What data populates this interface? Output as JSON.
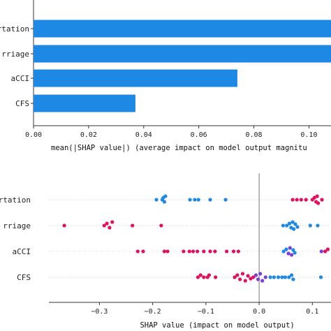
{
  "chart_data": [
    {
      "type": "bar",
      "orientation": "horizontal",
      "categories": [
        "Transportation",
        "Miscarriage",
        "aCCI",
        "CFS"
      ],
      "category_labels": [
        "rtation",
        "rriage",
        "aCCI",
        "CFS"
      ],
      "values": [
        0.112,
        0.108,
        0.074,
        0.037
      ],
      "xlim": [
        0.0,
        0.108
      ],
      "xticks": [
        0.0,
        0.02,
        0.04,
        0.06,
        0.08,
        0.1
      ],
      "xtick_labels": [
        "0.00",
        "0.02",
        "0.04",
        "0.06",
        "0.08",
        "0.10"
      ],
      "xlabel": "mean(|SHAP value|) (average impact on model output magnitu",
      "bar_color": "#1e88e5",
      "grid": false
    },
    {
      "type": "scatter",
      "subtype": "beeswarm",
      "categories": [
        "Transportation",
        "Miscarriage",
        "aCCI",
        "CFS"
      ],
      "category_labels": [
        "rtation",
        "rriage",
        "aCCI",
        "CFS"
      ],
      "xlim": [
        -0.395,
        0.135
      ],
      "xticks": [
        -0.3,
        -0.2,
        -0.1,
        0.0,
        0.1
      ],
      "xtick_labels": [
        "−0.3",
        "−0.2",
        "−0.1",
        "0.0",
        "0.1"
      ],
      "xlabel": "SHAP value (impact on model output)",
      "zero_line": true,
      "colors": {
        "low": "#1e88e5",
        "mid": "#7b3fd4",
        "high": "#e0125f"
      },
      "series": [
        {
          "row": 0,
          "points": [
            {
              "x": -0.193,
              "c": "low"
            },
            {
              "x": -0.182,
              "c": "low"
            },
            {
              "x": -0.18,
              "c": "low"
            },
            {
              "x": -0.178,
              "c": "low"
            },
            {
              "x": -0.176,
              "c": "low"
            },
            {
              "x": -0.13,
              "c": "low"
            },
            {
              "x": -0.121,
              "c": "low"
            },
            {
              "x": -0.114,
              "c": "low"
            },
            {
              "x": -0.092,
              "c": "low"
            },
            {
              "x": -0.063,
              "c": "low"
            },
            {
              "x": 0.063,
              "c": "high"
            },
            {
              "x": 0.071,
              "c": "high"
            },
            {
              "x": 0.079,
              "c": "high"
            },
            {
              "x": 0.088,
              "c": "high"
            },
            {
              "x": 0.1,
              "c": "high"
            },
            {
              "x": 0.104,
              "c": "high"
            },
            {
              "x": 0.107,
              "c": "high"
            },
            {
              "x": 0.109,
              "c": "high"
            },
            {
              "x": 0.111,
              "c": "high"
            },
            {
              "x": 0.118,
              "c": "high"
            }
          ]
        },
        {
          "row": 1,
          "points": [
            {
              "x": -0.366,
              "c": "high"
            },
            {
              "x": -0.291,
              "c": "high"
            },
            {
              "x": -0.286,
              "c": "high"
            },
            {
              "x": -0.281,
              "c": "high"
            },
            {
              "x": -0.276,
              "c": "high"
            },
            {
              "x": -0.238,
              "c": "high"
            },
            {
              "x": -0.184,
              "c": "high"
            },
            {
              "x": 0.045,
              "c": "low"
            },
            {
              "x": 0.052,
              "c": "low"
            },
            {
              "x": 0.057,
              "c": "low"
            },
            {
              "x": 0.06,
              "c": "low"
            },
            {
              "x": 0.063,
              "c": "low"
            },
            {
              "x": 0.065,
              "c": "low"
            },
            {
              "x": 0.068,
              "c": "low"
            },
            {
              "x": 0.072,
              "c": "low"
            },
            {
              "x": 0.096,
              "c": "low"
            },
            {
              "x": 0.11,
              "c": "low"
            }
          ]
        },
        {
          "row": 2,
          "points": [
            {
              "x": -0.228,
              "c": "high"
            },
            {
              "x": -0.218,
              "c": "high"
            },
            {
              "x": -0.178,
              "c": "high"
            },
            {
              "x": -0.172,
              "c": "high"
            },
            {
              "x": -0.142,
              "c": "high"
            },
            {
              "x": -0.131,
              "c": "high"
            },
            {
              "x": -0.124,
              "c": "high"
            },
            {
              "x": -0.116,
              "c": "high"
            },
            {
              "x": -0.104,
              "c": "high"
            },
            {
              "x": -0.092,
              "c": "high"
            },
            {
              "x": -0.083,
              "c": "high"
            },
            {
              "x": -0.061,
              "c": "high"
            },
            {
              "x": -0.048,
              "c": "high"
            },
            {
              "x": -0.039,
              "c": "high"
            },
            {
              "x": 0.046,
              "c": "low"
            },
            {
              "x": 0.051,
              "c": "low"
            },
            {
              "x": 0.055,
              "c": "mid"
            },
            {
              "x": 0.058,
              "c": "mid"
            },
            {
              "x": 0.061,
              "c": "mid"
            },
            {
              "x": 0.064,
              "c": "low"
            },
            {
              "x": 0.067,
              "c": "low"
            },
            {
              "x": 0.117,
              "c": "mid"
            },
            {
              "x": 0.124,
              "c": "high"
            },
            {
              "x": 0.129,
              "c": "high"
            }
          ]
        },
        {
          "row": 3,
          "points": [
            {
              "x": -0.115,
              "c": "high"
            },
            {
              "x": -0.11,
              "c": "high"
            },
            {
              "x": -0.104,
              "c": "high"
            },
            {
              "x": -0.097,
              "c": "high"
            },
            {
              "x": -0.094,
              "c": "high"
            },
            {
              "x": -0.082,
              "c": "high"
            },
            {
              "x": -0.046,
              "c": "high"
            },
            {
              "x": -0.041,
              "c": "high"
            },
            {
              "x": -0.036,
              "c": "high"
            },
            {
              "x": -0.031,
              "c": "high"
            },
            {
              "x": -0.026,
              "c": "high"
            },
            {
              "x": -0.021,
              "c": "high"
            },
            {
              "x": -0.016,
              "c": "high"
            },
            {
              "x": -0.011,
              "c": "high"
            },
            {
              "x": -0.006,
              "c": "mid"
            },
            {
              "x": -0.002,
              "c": "mid"
            },
            {
              "x": 0.002,
              "c": "mid"
            },
            {
              "x": 0.006,
              "c": "mid"
            },
            {
              "x": 0.012,
              "c": "mid"
            },
            {
              "x": 0.021,
              "c": "low"
            },
            {
              "x": 0.028,
              "c": "low"
            },
            {
              "x": 0.036,
              "c": "low"
            },
            {
              "x": 0.043,
              "c": "low"
            },
            {
              "x": 0.049,
              "c": "low"
            },
            {
              "x": 0.056,
              "c": "low"
            },
            {
              "x": 0.061,
              "c": "low"
            },
            {
              "x": 0.064,
              "c": "low"
            },
            {
              "x": 0.116,
              "c": "low"
            }
          ]
        }
      ]
    }
  ]
}
